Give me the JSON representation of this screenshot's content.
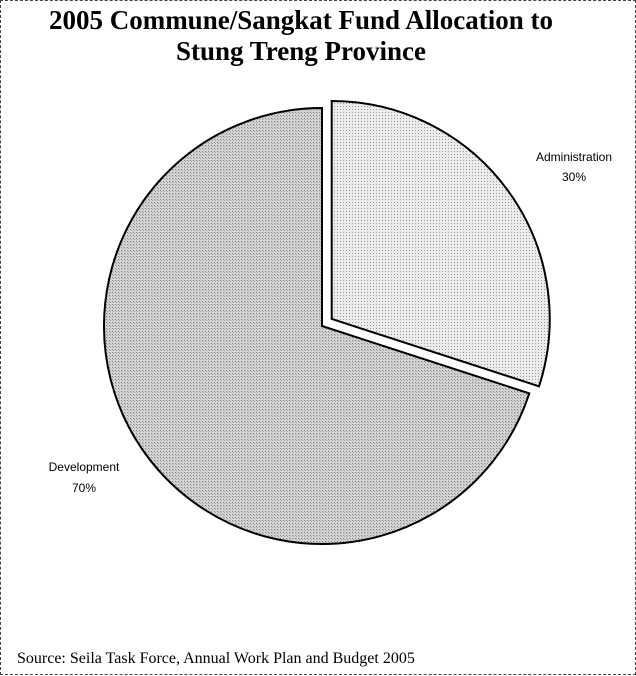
{
  "chart_data": {
    "type": "pie",
    "title_lines": [
      "2005 Commune/Sangkat Fund Allocation to",
      "Stung Treng Province"
    ],
    "categories": [
      "Administration",
      "Development"
    ],
    "values": [
      30,
      70
    ],
    "value_labels": [
      "30%",
      "70%"
    ],
    "exploded": [
      "Administration"
    ],
    "colors": [
      "#e2e2e2",
      "#cfcfcf"
    ],
    "source": "Source: Seila Task Force, Annual Work Plan and Budget 2005"
  }
}
